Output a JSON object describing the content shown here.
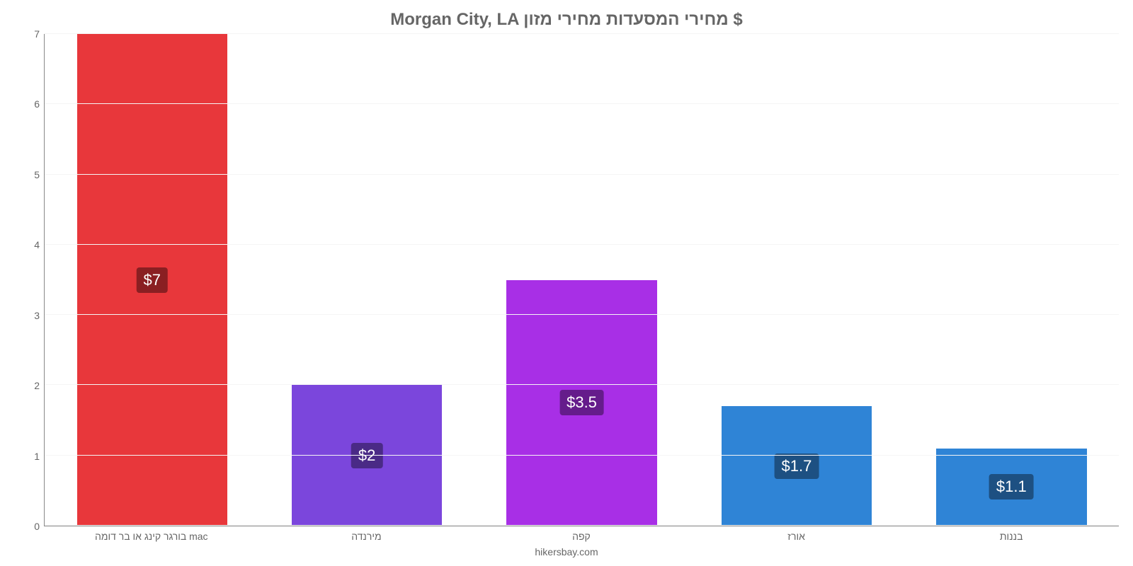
{
  "chart": {
    "type": "bar",
    "title": "Morgan City, LA מחירי המסעדות מחירי מזון $",
    "subtitle": "hikersbay.com",
    "title_fontsize": 24,
    "title_color": "#666666",
    "label_fontsize": 14,
    "label_color": "#666666",
    "background_color": "#ffffff",
    "grid_color": "#f5f5f5",
    "axis_color": "#888888",
    "ylim": [
      0,
      7
    ],
    "ytick_step": 1,
    "yticks": [
      "0",
      "1",
      "2",
      "3",
      "4",
      "5",
      "6",
      "7"
    ],
    "bar_width": 0.7,
    "categories": [
      "בורגר קינג או בר דומה mac",
      "מירנדה",
      "קפה",
      "אורז",
      "בננות"
    ],
    "values": [
      7,
      2,
      3.5,
      1.7,
      1.1
    ],
    "value_labels": [
      "$7",
      "$2",
      "$3.5",
      "$1.7",
      "$1.1"
    ],
    "bar_colors": [
      "#e8373b",
      "#7b46dc",
      "#a82fe6",
      "#2f84d6",
      "#2f84d6"
    ],
    "label_badge_bg": [
      "#8a1f22",
      "#4a2a86",
      "#651c8b",
      "#1d5082",
      "#1d5082"
    ],
    "label_badge_text": "#ffffff",
    "label_badge_fontsize": 22
  }
}
